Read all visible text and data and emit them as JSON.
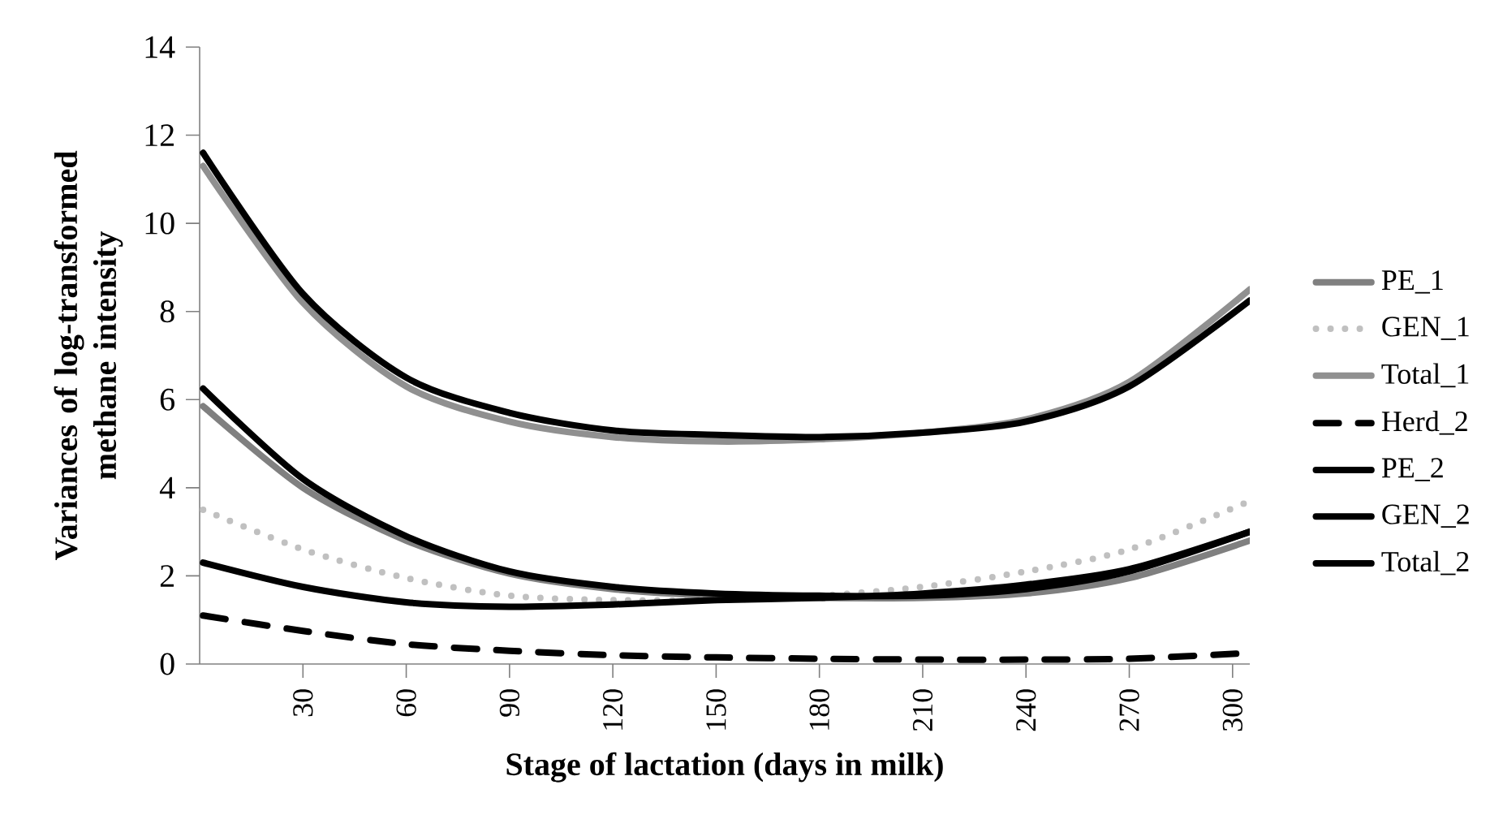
{
  "chart_data": {
    "type": "line",
    "xlabel": "Stage of lactation (days in milk)",
    "ylabel": "Variances of log-transformed methane intensity",
    "x": [
      1,
      30,
      60,
      90,
      120,
      150,
      180,
      210,
      240,
      270,
      305
    ],
    "xlim": [
      0,
      305
    ],
    "xticks": [
      30,
      60,
      90,
      120,
      150,
      180,
      210,
      240,
      270,
      300
    ],
    "ylim": [
      0,
      14
    ],
    "yticks": [
      0,
      2,
      4,
      6,
      8,
      10,
      12,
      14
    ],
    "grid": false,
    "legend": "right",
    "series": [
      {
        "name": "PE_1",
        "color": "#808080",
        "values": [
          5.85,
          4.0,
          2.8,
          2.05,
          1.7,
          1.55,
          1.5,
          1.5,
          1.6,
          1.95,
          2.8
        ]
      },
      {
        "name": "GEN_1",
        "color": "#c0c0c0",
        "line_style": "dotted",
        "values": [
          3.5,
          2.6,
          1.95,
          1.55,
          1.45,
          1.45,
          1.55,
          1.75,
          2.1,
          2.6,
          3.7
        ]
      },
      {
        "name": "Total_1",
        "color": "#909090",
        "values": [
          11.3,
          8.2,
          6.3,
          5.5,
          5.15,
          5.05,
          5.1,
          5.25,
          5.55,
          6.4,
          8.5
        ]
      },
      {
        "name": "Herd_2",
        "color": "#000000",
        "line_style": "dashed",
        "values": [
          1.1,
          0.75,
          0.45,
          0.3,
          0.2,
          0.15,
          0.12,
          0.1,
          0.1,
          0.12,
          0.25
        ]
      },
      {
        "name": "PE_2",
        "color": "#000000",
        "values": [
          6.25,
          4.2,
          2.9,
          2.1,
          1.75,
          1.6,
          1.55,
          1.55,
          1.7,
          2.1,
          3.0
        ]
      },
      {
        "name": "GEN_2",
        "color": "#000000",
        "values": [
          2.3,
          1.75,
          1.4,
          1.3,
          1.35,
          1.45,
          1.5,
          1.6,
          1.8,
          2.15,
          3.0
        ]
      },
      {
        "name": "Total_2",
        "color": "#000000",
        "values": [
          11.6,
          8.4,
          6.5,
          5.7,
          5.3,
          5.2,
          5.15,
          5.25,
          5.5,
          6.3,
          8.25
        ]
      }
    ]
  }
}
